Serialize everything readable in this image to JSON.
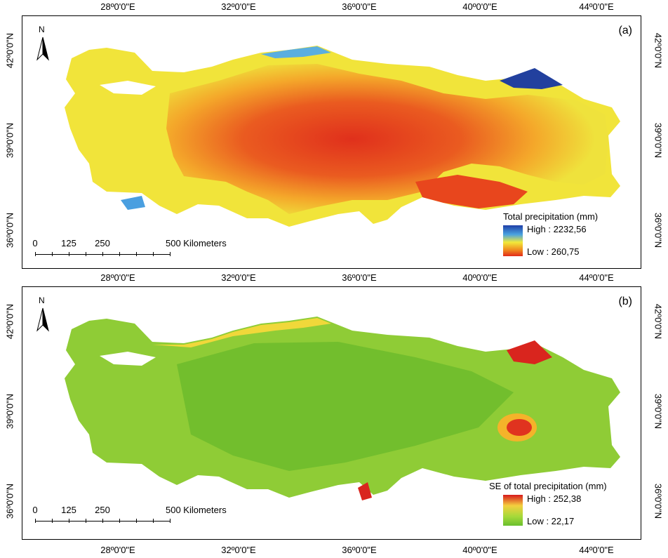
{
  "lon_labels": [
    "28º0'0\"E",
    "32º0'0\"E",
    "36º0'0\"E",
    "40º0'0\"E",
    "44º0'0\"E"
  ],
  "lat_labels": [
    "42º0'0\"N",
    "39º0'0\"N",
    "36º0'0\"N"
  ],
  "north_arrow": {
    "letter": "N",
    "icon": "north-arrow-icon"
  },
  "scale_bar": {
    "ticks": [
      "0",
      "125",
      "250",
      "500 Kilometers"
    ]
  },
  "panels": [
    {
      "label": "(a)",
      "legend": {
        "title": "Total precipitation (mm)",
        "high": "High : 2232,56",
        "low": "Low : 260,75",
        "colors": [
          "#1f3fa8",
          "#4aa3e0",
          "#f2ea3a",
          "#f08a1e",
          "#e22a1a"
        ]
      }
    },
    {
      "label": "(b)",
      "legend": {
        "title": "SE of total precipitation (mm)",
        "high": "High : 252,38",
        "low": "Low : 22,17",
        "colors": [
          "#d7191c",
          "#f4d03f",
          "#a6d93a",
          "#6abf2e"
        ]
      }
    }
  ]
}
